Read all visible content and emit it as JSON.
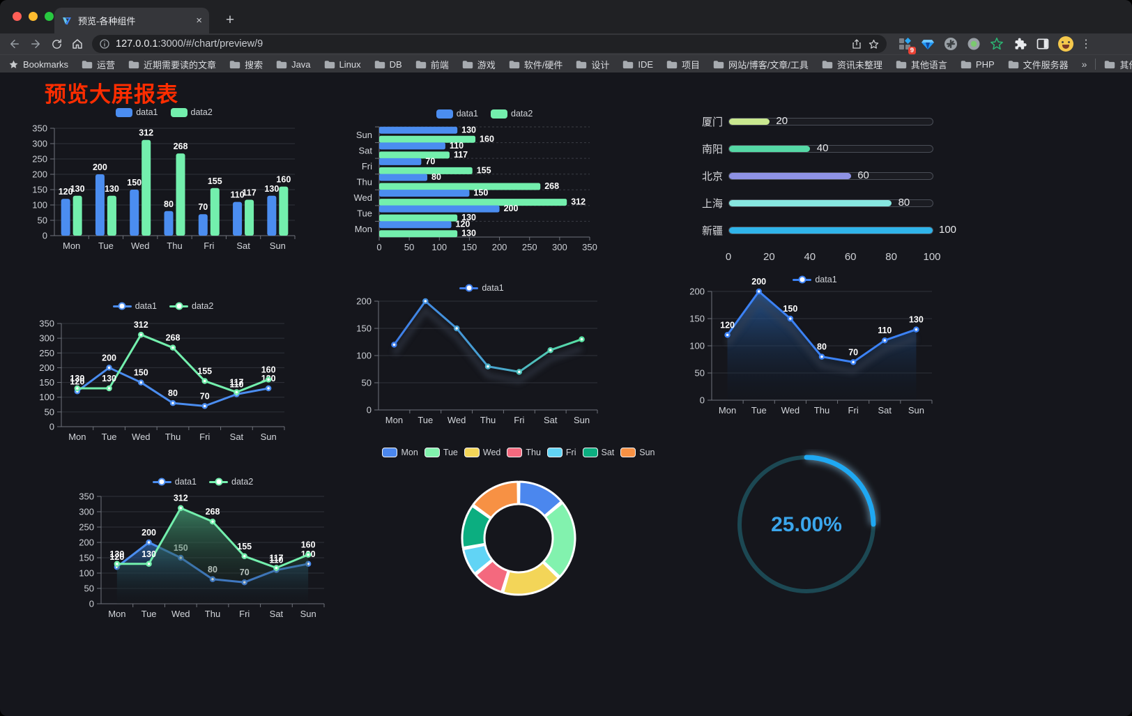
{
  "browser": {
    "tab_title": "预览-各种组件",
    "close_tab_label": "×",
    "new_tab_label": "+",
    "url_host": "127.0.0.1",
    "url_rest": ":3000/#/chart/preview/9",
    "extension_badge": "9"
  },
  "bookmarks": {
    "label": "Bookmarks",
    "items": [
      "运营",
      "近期需要读的文章",
      "搜索",
      "Java",
      "Linux",
      "DB",
      "前端",
      "游戏",
      "软件/硬件",
      "设计",
      "IDE",
      "项目",
      "网站/博客/文章/工具",
      "资讯未整理",
      "其他语言",
      "PHP",
      "文件服务器"
    ],
    "overflow_chevron": "»",
    "other_label": "其他书签"
  },
  "page": {
    "title": "预览大屏报表",
    "title_color": "#FF2D00",
    "background": "#15161C"
  },
  "chart_data": [
    {
      "id": "bar-vertical",
      "type": "bar",
      "categories": [
        "Mon",
        "Tue",
        "Wed",
        "Thu",
        "Fri",
        "Sat",
        "Sun"
      ],
      "series": [
        {
          "name": "data1",
          "color": "#4B8DF0",
          "values": [
            120,
            200,
            150,
            80,
            70,
            110,
            130
          ]
        },
        {
          "name": "data2",
          "color": "#73EFAD",
          "values": [
            130,
            130,
            312,
            268,
            155,
            117,
            160
          ]
        }
      ],
      "ylim": [
        0,
        350
      ],
      "yticks": [
        0,
        50,
        100,
        150,
        200,
        250,
        300,
        350
      ],
      "legend_position": "top",
      "value_labels": true,
      "grid": true
    },
    {
      "id": "bar-horizontal",
      "type": "bar",
      "orientation": "horizontal",
      "categories_top_to_bottom": [
        "Sun",
        "Sat",
        "Fri",
        "Thu",
        "Wed",
        "Tue",
        "Mon"
      ],
      "series": [
        {
          "name": "data1",
          "color": "#4B8DF0",
          "values_top_to_bottom": [
            130,
            110,
            70,
            80,
            150,
            200,
            120
          ]
        },
        {
          "name": "data2",
          "color": "#73EFAD",
          "values_top_to_bottom": [
            160,
            117,
            155,
            268,
            312,
            130,
            130
          ]
        }
      ],
      "xlim": [
        0,
        350
      ],
      "xticks": [
        0,
        50,
        100,
        150,
        200,
        250,
        300,
        350
      ],
      "legend_position": "top",
      "value_labels": true,
      "grid": true
    },
    {
      "id": "city-progress",
      "type": "bar",
      "style": "progress",
      "orientation": "horizontal",
      "rows": [
        {
          "label": "厦门",
          "value": 20,
          "color": "#C9E88F"
        },
        {
          "label": "南阳",
          "value": 40,
          "color": "#55D8A5"
        },
        {
          "label": "北京",
          "value": 60,
          "color": "#8E92E5"
        },
        {
          "label": "上海",
          "value": 80,
          "color": "#87E7E0"
        },
        {
          "label": "新疆",
          "value": 100,
          "color": "#2FB4EA"
        }
      ],
      "xlim": [
        0,
        100
      ],
      "xticks": [
        0,
        20,
        40,
        60,
        80,
        100
      ]
    },
    {
      "id": "line-dual",
      "type": "line",
      "categories": [
        "Mon",
        "Tue",
        "Wed",
        "Thu",
        "Fri",
        "Sat",
        "Sun"
      ],
      "series": [
        {
          "name": "data1",
          "color": "#4B8DF0",
          "values": [
            120,
            200,
            150,
            80,
            70,
            110,
            130
          ]
        },
        {
          "name": "data2",
          "color": "#73EFAD",
          "values": [
            130,
            130,
            312,
            268,
            155,
            117,
            160
          ]
        }
      ],
      "ylim": [
        0,
        350
      ],
      "yticks": [
        0,
        50,
        100,
        150,
        200,
        250,
        300,
        350
      ],
      "legend_position": "top",
      "value_labels": true,
      "grid": true
    },
    {
      "id": "line-gradient",
      "type": "line",
      "categories": [
        "Mon",
        "Tue",
        "Wed",
        "Thu",
        "Fri",
        "Sat",
        "Sun"
      ],
      "series": [
        {
          "name": "data1",
          "gradient": [
            "#3E7DEA",
            "#58E2A2"
          ],
          "values": [
            120,
            200,
            150,
            80,
            70,
            110,
            130
          ]
        }
      ],
      "ylim": [
        0,
        200
      ],
      "yticks": [
        0,
        50,
        100,
        150,
        200
      ],
      "legend_position": "top",
      "value_labels": false,
      "shadow": true,
      "grid": true
    },
    {
      "id": "area-single",
      "type": "area",
      "categories": [
        "Mon",
        "Tue",
        "Wed",
        "Thu",
        "Fri",
        "Sat",
        "Sun"
      ],
      "series": [
        {
          "name": "data1",
          "color": "#3C82F5",
          "area": true,
          "area_colors": [
            "#2A5EA0",
            "#0D1A2C"
          ],
          "values": [
            120,
            200,
            150,
            80,
            70,
            110,
            130
          ]
        }
      ],
      "ylim": [
        0,
        200
      ],
      "yticks": [
        0,
        50,
        100,
        150,
        200
      ],
      "legend_position": "top",
      "value_labels": true,
      "shadow": true,
      "grid": true
    },
    {
      "id": "area-dual",
      "type": "area",
      "categories": [
        "Mon",
        "Tue",
        "Wed",
        "Thu",
        "Fri",
        "Sat",
        "Sun"
      ],
      "series": [
        {
          "name": "data1",
          "color": "#4B8DF0",
          "area": true,
          "area_colors": [
            "#2D5F9E",
            "#101722"
          ],
          "values": [
            120,
            200,
            150,
            80,
            70,
            110,
            130
          ]
        },
        {
          "name": "data2",
          "color": "#73EFAD",
          "area": true,
          "area_colors": [
            "#3F8F6B",
            "#121A16"
          ],
          "values": [
            130,
            130,
            312,
            268,
            155,
            117,
            160
          ]
        }
      ],
      "ylim": [
        0,
        350
      ],
      "yticks": [
        0,
        50,
        100,
        150,
        200,
        250,
        300,
        350
      ],
      "legend_position": "top",
      "value_labels": true,
      "grid": true
    },
    {
      "id": "donut",
      "type": "pie",
      "categories": [
        "Mon",
        "Tue",
        "Wed",
        "Thu",
        "Fri",
        "Sat",
        "Sun"
      ],
      "values": [
        120,
        200,
        150,
        80,
        70,
        110,
        130
      ],
      "colors": [
        "#4B87EE",
        "#82F2AE",
        "#F3D558",
        "#F4697E",
        "#61D4F5",
        "#0CAE80",
        "#F79144"
      ],
      "legend_position": "top",
      "inner_radius_ratio": 0.6
    },
    {
      "id": "gauge",
      "type": "gauge",
      "value": 25,
      "max": 100,
      "label": "25.00%",
      "progress_color": "#1FA8F2",
      "track_color": "#1C4853",
      "text_color": "#3BA6EC"
    }
  ]
}
